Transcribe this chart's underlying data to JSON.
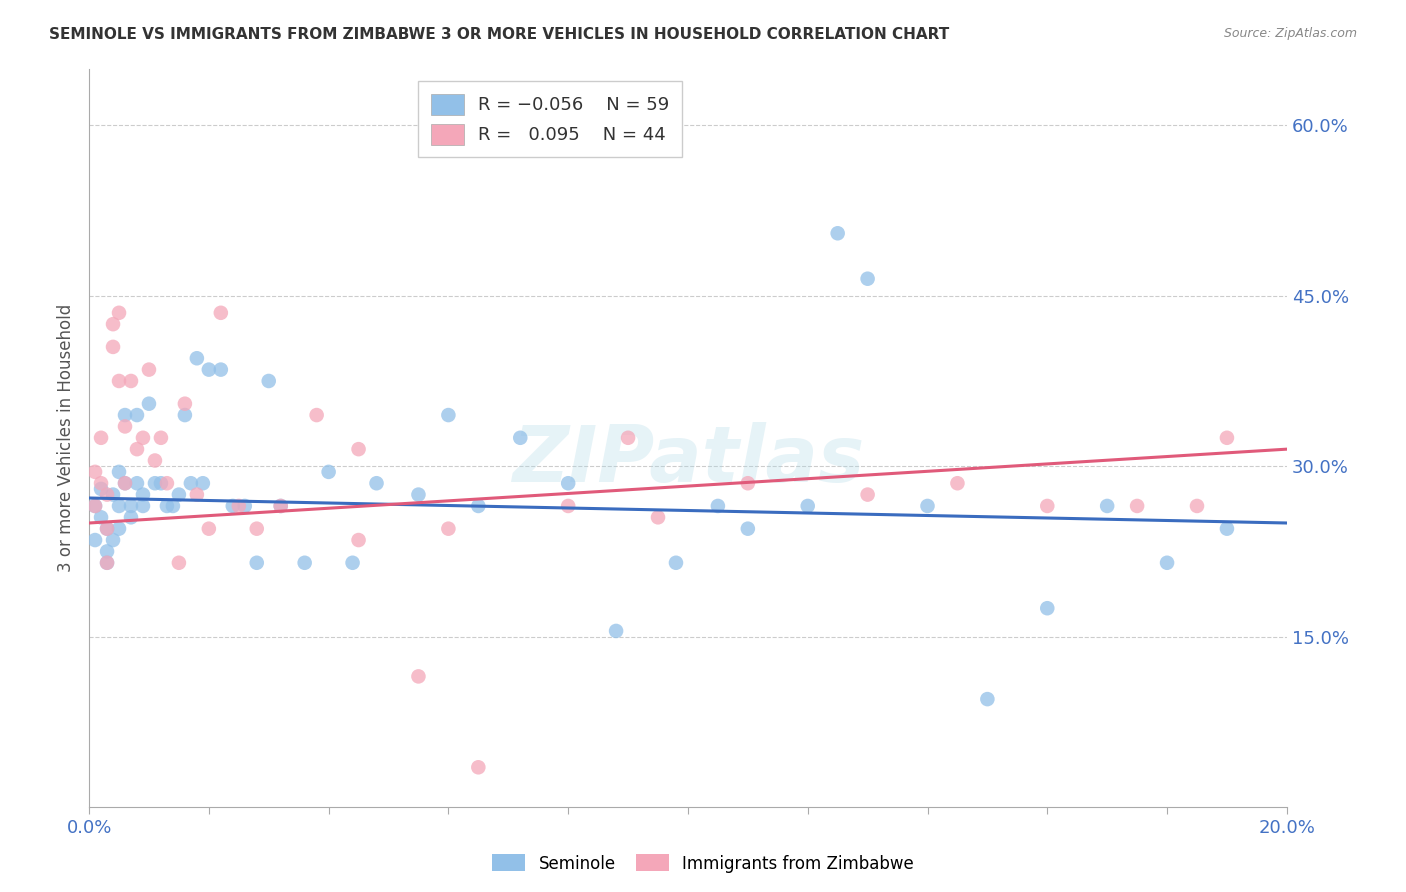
{
  "title": "SEMINOLE VS IMMIGRANTS FROM ZIMBABWE 3 OR MORE VEHICLES IN HOUSEHOLD CORRELATION CHART",
  "source": "Source: ZipAtlas.com",
  "ylabel": "3 or more Vehicles in Household",
  "blue_label": "Seminole",
  "pink_label": "Immigrants from Zimbabwe",
  "blue_R": -0.056,
  "blue_N": 59,
  "pink_R": 0.095,
  "pink_N": 44,
  "xlim": [
    0.0,
    0.2
  ],
  "ylim": [
    0.0,
    0.65
  ],
  "xticks": [
    0.0,
    0.02,
    0.04,
    0.06,
    0.08,
    0.1,
    0.12,
    0.14,
    0.16,
    0.18,
    0.2
  ],
  "yticks_right": [
    0.15,
    0.3,
    0.45,
    0.6
  ],
  "ytick_right_labels": [
    "15.0%",
    "30.0%",
    "45.0%",
    "60.0%"
  ],
  "grid_color": "#cccccc",
  "blue_color": "#92c0e8",
  "pink_color": "#f4a7b9",
  "blue_line_color": "#3a6cbf",
  "pink_line_color": "#e05a7a",
  "background_color": "#ffffff",
  "watermark": "ZIPatlas",
  "blue_line_x0": 0.0,
  "blue_line_y0": 0.272,
  "blue_line_x1": 0.2,
  "blue_line_y1": 0.25,
  "pink_line_x0": 0.0,
  "pink_line_y0": 0.25,
  "pink_line_x1": 0.2,
  "pink_line_y1": 0.315,
  "blue_x": [
    0.001,
    0.001,
    0.002,
    0.002,
    0.003,
    0.003,
    0.003,
    0.004,
    0.004,
    0.005,
    0.005,
    0.005,
    0.006,
    0.006,
    0.007,
    0.007,
    0.008,
    0.008,
    0.009,
    0.009,
    0.01,
    0.011,
    0.012,
    0.013,
    0.014,
    0.015,
    0.016,
    0.017,
    0.018,
    0.019,
    0.02,
    0.022,
    0.024,
    0.026,
    0.028,
    0.03,
    0.032,
    0.036,
    0.04,
    0.044,
    0.048,
    0.055,
    0.06,
    0.065,
    0.072,
    0.08,
    0.088,
    0.098,
    0.105,
    0.11,
    0.12,
    0.13,
    0.14,
    0.15,
    0.16,
    0.17,
    0.18,
    0.19,
    0.125
  ],
  "blue_y": [
    0.265,
    0.235,
    0.28,
    0.255,
    0.245,
    0.225,
    0.215,
    0.275,
    0.235,
    0.295,
    0.265,
    0.245,
    0.345,
    0.285,
    0.265,
    0.255,
    0.345,
    0.285,
    0.275,
    0.265,
    0.355,
    0.285,
    0.285,
    0.265,
    0.265,
    0.275,
    0.345,
    0.285,
    0.395,
    0.285,
    0.385,
    0.385,
    0.265,
    0.265,
    0.215,
    0.375,
    0.265,
    0.215,
    0.295,
    0.215,
    0.285,
    0.275,
    0.345,
    0.265,
    0.325,
    0.285,
    0.155,
    0.215,
    0.265,
    0.245,
    0.265,
    0.465,
    0.265,
    0.095,
    0.175,
    0.265,
    0.215,
    0.245,
    0.505
  ],
  "pink_x": [
    0.001,
    0.001,
    0.002,
    0.002,
    0.003,
    0.003,
    0.003,
    0.004,
    0.004,
    0.005,
    0.005,
    0.006,
    0.006,
    0.007,
    0.008,
    0.009,
    0.01,
    0.011,
    0.012,
    0.013,
    0.015,
    0.016,
    0.018,
    0.02,
    0.022,
    0.025,
    0.028,
    0.032,
    0.038,
    0.045,
    0.055,
    0.065,
    0.08,
    0.095,
    0.11,
    0.13,
    0.145,
    0.16,
    0.175,
    0.185,
    0.19,
    0.06,
    0.09,
    0.045
  ],
  "pink_y": [
    0.295,
    0.265,
    0.325,
    0.285,
    0.275,
    0.245,
    0.215,
    0.425,
    0.405,
    0.435,
    0.375,
    0.335,
    0.285,
    0.375,
    0.315,
    0.325,
    0.385,
    0.305,
    0.325,
    0.285,
    0.215,
    0.355,
    0.275,
    0.245,
    0.435,
    0.265,
    0.245,
    0.265,
    0.345,
    0.235,
    0.115,
    0.035,
    0.265,
    0.255,
    0.285,
    0.275,
    0.285,
    0.265,
    0.265,
    0.265,
    0.325,
    0.245,
    0.325,
    0.315
  ]
}
